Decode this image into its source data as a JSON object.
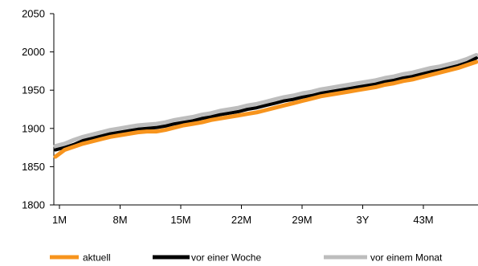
{
  "chart_data": {
    "type": "line",
    "title": "",
    "xlabel": "",
    "ylabel": "",
    "x_tick_labels": [
      "1M",
      "8M",
      "15M",
      "22M",
      "29M",
      "3Y",
      "43M"
    ],
    "ylim": [
      1800,
      2050
    ],
    "y_ticks": [
      1800,
      1850,
      1900,
      1950,
      2000,
      2050
    ],
    "grid": false,
    "legend_position": "bottom",
    "series": [
      {
        "name": "aktuell",
        "color": "#f7941d",
        "values": [
          1863,
          1872,
          1876,
          1880,
          1883,
          1886,
          1889,
          1891,
          1893,
          1895,
          1896,
          1896,
          1898,
          1901,
          1904,
          1906,
          1908,
          1911,
          1913,
          1915,
          1917,
          1919,
          1921,
          1924,
          1927,
          1930,
          1933,
          1936,
          1939,
          1942,
          1944,
          1946,
          1948,
          1950,
          1952,
          1954,
          1957,
          1959,
          1962,
          1964,
          1967,
          1970,
          1973,
          1976,
          1979,
          1983,
          1987
        ]
      },
      {
        "name": "vor einer Woche",
        "color": "#000000",
        "values": [
          1872,
          1875,
          1879,
          1884,
          1887,
          1890,
          1893,
          1895,
          1897,
          1899,
          1900,
          1901,
          1903,
          1906,
          1908,
          1910,
          1913,
          1915,
          1918,
          1920,
          1922,
          1925,
          1927,
          1930,
          1933,
          1936,
          1938,
          1941,
          1943,
          1946,
          1948,
          1950,
          1952,
          1954,
          1956,
          1958,
          1961,
          1963,
          1966,
          1968,
          1971,
          1974,
          1976,
          1979,
          1982,
          1986,
          1992
        ]
      },
      {
        "name": "vor einem Monat",
        "color": "#bdbdbd",
        "values": [
          1877,
          1880,
          1885,
          1889,
          1892,
          1895,
          1898,
          1900,
          1902,
          1904,
          1905,
          1906,
          1908,
          1911,
          1913,
          1915,
          1918,
          1920,
          1923,
          1925,
          1927,
          1930,
          1932,
          1935,
          1938,
          1941,
          1943,
          1946,
          1948,
          1951,
          1953,
          1955,
          1957,
          1959,
          1961,
          1963,
          1966,
          1968,
          1971,
          1973,
          1976,
          1979,
          1981,
          1984,
          1987,
          1991,
          1996
        ]
      }
    ]
  }
}
